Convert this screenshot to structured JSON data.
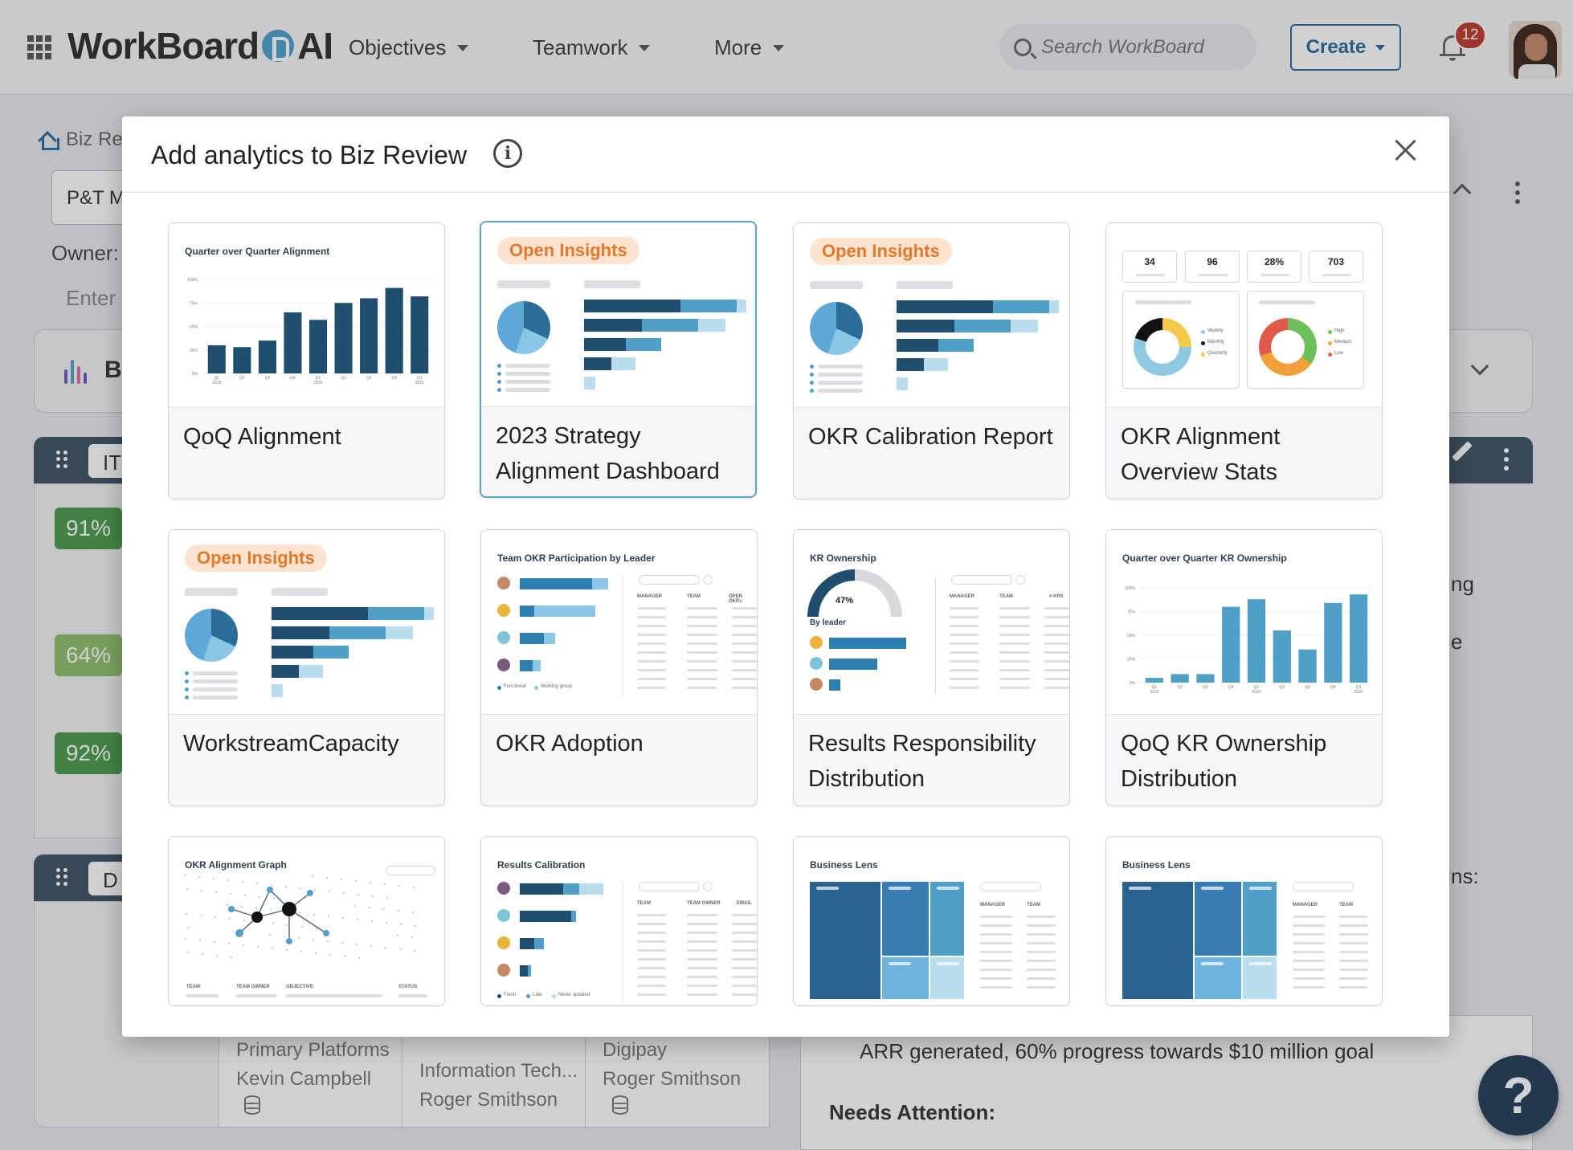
{
  "topnav": {
    "logo_left": "WorkBoard",
    "logo_right": "AI",
    "menus": [
      {
        "label": "Objectives"
      },
      {
        "label": "Teamwork"
      },
      {
        "label": "More"
      }
    ],
    "search_placeholder": "Search WorkBoard",
    "create_label": "Create",
    "notification_count": "12"
  },
  "background": {
    "breadcrumb": "Biz Re",
    "select_value": "P&T M",
    "owner_label": "Owner:",
    "enter_placeholder": "Enter",
    "section_title": "B",
    "workstream_a_label": "IT",
    "workstream_b_label": "D",
    "percentages": [
      "91%",
      "64%",
      "92%"
    ],
    "percent_colors": [
      "#4a9a4a",
      "#8fbf6a",
      "#4a9a4a"
    ],
    "side_fragments": [
      "ng",
      "e",
      "ns:"
    ],
    "rows": [
      {
        "team": "Primary Platforms",
        "owner": "Kevin Campbell"
      },
      {
        "team": "Information Tech...",
        "owner": "Roger Smithson"
      },
      {
        "team": "Digipay",
        "owner": "Roger Smithson"
      }
    ],
    "progress_note": "ARR generated, 60% progress towards $10 million goal",
    "needs_attention": "Needs Attention:"
  },
  "modal": {
    "title": "Add analytics to Biz Review",
    "tiles": [
      {
        "name": "QoQ Alignment",
        "preview_title": "Quarter over Quarter Alignment",
        "y_ticks": [
          "100%",
          "75%",
          "50%",
          "25%",
          "0%"
        ],
        "values": [
          30,
          28,
          35,
          65,
          57,
          75,
          80,
          91,
          82
        ]
      },
      {
        "name": "2023 Strategy Alignment Dashboard",
        "badge": "Open Insights",
        "selected": true
      },
      {
        "name": "OKR Calibration Report",
        "badge": "Open Insights"
      },
      {
        "name": "OKR Alignment Overview Stats",
        "stats": [
          "34",
          "96",
          "28%",
          "703"
        ],
        "legend_a": [
          "Weekly",
          "Monthly",
          "Quarterly"
        ],
        "legend_b": [
          "High",
          "Medium",
          "Low"
        ]
      },
      {
        "name": "WorkstreamCapacity",
        "badge": "Open Insights"
      },
      {
        "name": "OKR Adoption",
        "preview_title": "Team OKR Participation by Leader",
        "columns": [
          "MANAGER",
          "TEAM",
          "OPEN OKRs"
        ],
        "legend": [
          "Functional",
          "Working group"
        ]
      },
      {
        "name": "Results Responsibility Distribution",
        "preview_title": "KR Ownership",
        "gauge_value": "47%",
        "sub_title": "By leader",
        "columns": [
          "MANAGER",
          "TEAM",
          "# KRS"
        ]
      },
      {
        "name": "QoQ KR Ownership Distribution",
        "preview_title": "Quarter over Quarter KR Ownership",
        "y_ticks": [
          "100%",
          "75%",
          "50%",
          "25%",
          "0%"
        ],
        "values": [
          5,
          9,
          9,
          80,
          88,
          55,
          35,
          84,
          93
        ]
      },
      {
        "name": "OKR Alignment Graph",
        "preview_title": "OKR Alignment Graph",
        "columns": [
          "TEAM",
          "TEAM OWNER",
          "OBJECTIVE",
          "STATUS"
        ]
      },
      {
        "name": "Results Calibration",
        "preview_title": "Results Calibration",
        "columns": [
          "TEAM",
          "TEAM OWNER",
          "EMAIL"
        ],
        "legend": [
          "Fresh",
          "Late",
          "Never updated"
        ]
      },
      {
        "name": "Business Lens",
        "preview_title": "Business Lens",
        "columns": [
          "MANAGER",
          "TEAM"
        ]
      },
      {
        "name": "Business Lens",
        "preview_title": "Business Lens",
        "columns": [
          "MANAGER",
          "TEAM"
        ]
      }
    ],
    "quarter_labels": [
      "Q1\n2019",
      "Q2",
      "Q3",
      "Q4",
      "Q1\n2020",
      "Q2",
      "Q3",
      "Q4",
      "Q1\n2021"
    ]
  },
  "help_label": "?"
}
